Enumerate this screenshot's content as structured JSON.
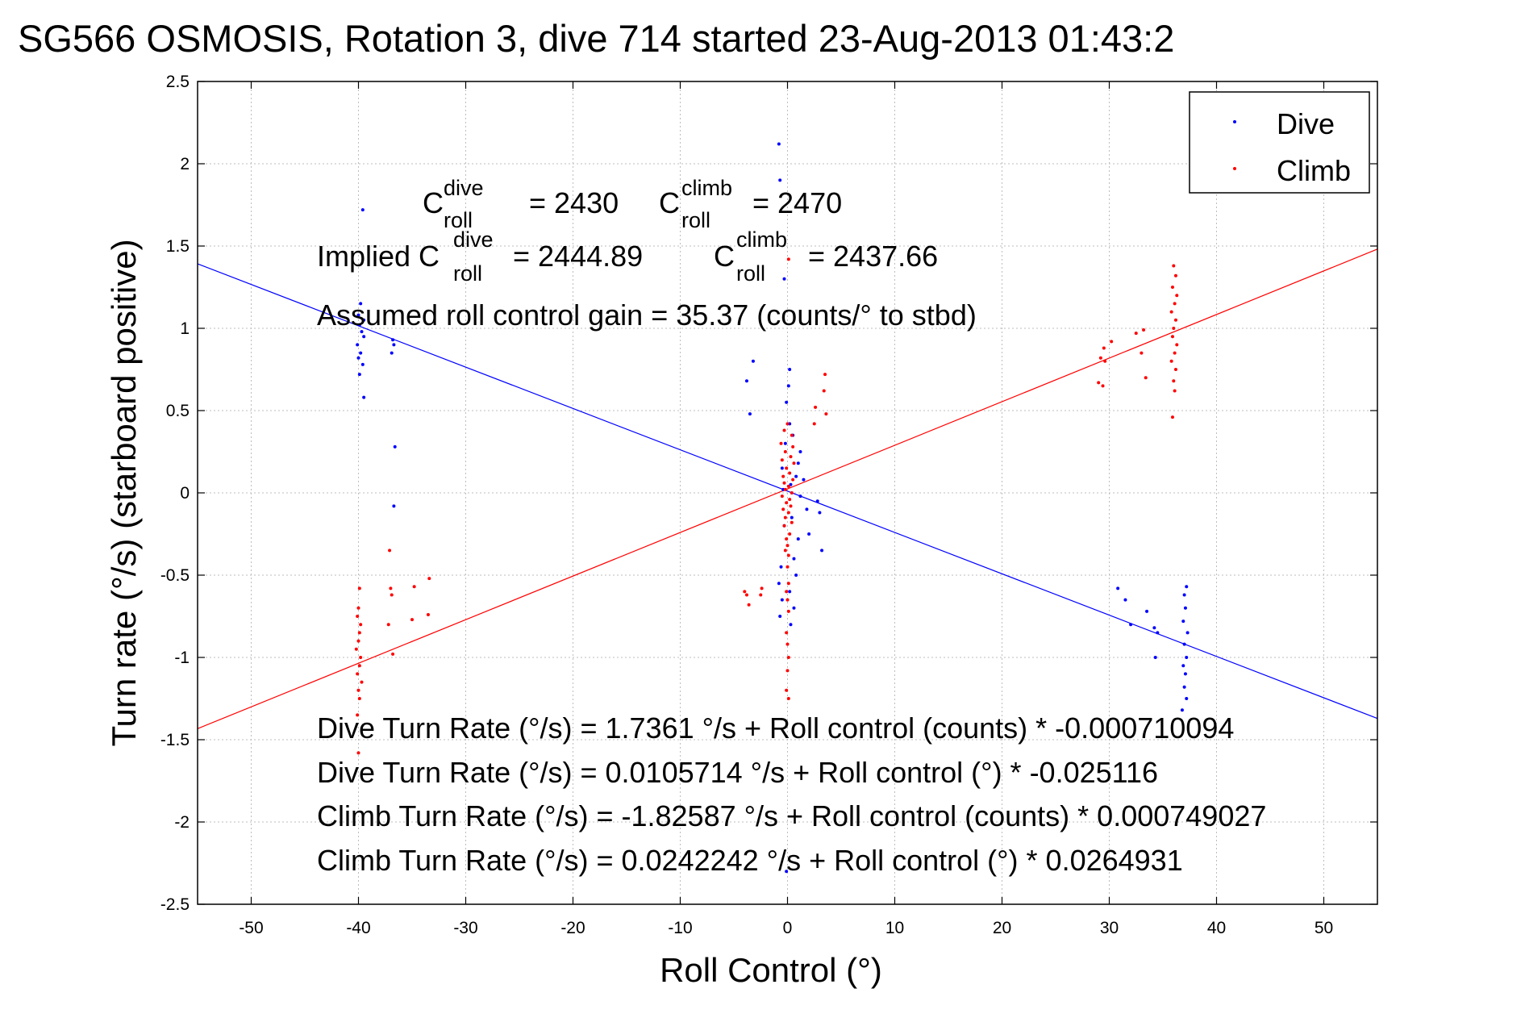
{
  "chart_data": {
    "type": "scatter",
    "title": "SG566 OSMOSIS, Rotation 3, dive 714 started 23-Aug-2013 01:43:2",
    "xlabel": "Roll Control (°)",
    "ylabel": "Turn rate (°/s)  (starboard positive)",
    "xlim": [
      -55,
      55
    ],
    "ylim": [
      -2.5,
      2.5
    ],
    "xticks": [
      -50,
      -40,
      -30,
      -20,
      -10,
      0,
      10,
      20,
      30,
      40,
      50
    ],
    "yticks": [
      -2.5,
      -2,
      -1.5,
      -1,
      -0.5,
      0,
      0.5,
      1,
      1.5,
      2,
      2.5
    ],
    "grid": true,
    "legend_position": "top-right",
    "series": [
      {
        "name": "Dive",
        "color": "#0000ff",
        "points": [
          [
            -39.6,
            1.72
          ],
          [
            -39.8,
            1.15
          ],
          [
            -40.0,
            1.08
          ],
          [
            -39.5,
            1.05
          ],
          [
            -39.9,
            1.02
          ],
          [
            -39.7,
            0.98
          ],
          [
            -39.5,
            0.95
          ],
          [
            -40.1,
            0.9
          ],
          [
            -39.8,
            0.85
          ],
          [
            -40.0,
            0.82
          ],
          [
            -39.6,
            0.78
          ],
          [
            -39.9,
            0.72
          ],
          [
            -39.5,
            0.58
          ],
          [
            -36.8,
            0.93
          ],
          [
            -36.7,
            0.9
          ],
          [
            -36.9,
            0.85
          ],
          [
            -36.6,
            0.28
          ],
          [
            -36.7,
            -0.08
          ],
          [
            -0.8,
            2.12
          ],
          [
            -0.7,
            1.9
          ],
          [
            -0.3,
            1.3
          ],
          [
            -3.2,
            0.8
          ],
          [
            -3.8,
            0.68
          ],
          [
            -3.5,
            0.48
          ],
          [
            0.2,
            0.75
          ],
          [
            0.1,
            0.65
          ],
          [
            -0.1,
            0.55
          ],
          [
            0.2,
            0.42
          ],
          [
            0.5,
            0.35
          ],
          [
            -0.2,
            0.3
          ],
          [
            1.2,
            0.25
          ],
          [
            1.0,
            0.18
          ],
          [
            -0.5,
            0.15
          ],
          [
            0.8,
            0.1
          ],
          [
            1.5,
            0.08
          ],
          [
            0.3,
            0.05
          ],
          [
            -0.4,
            0.02
          ],
          [
            1.2,
            -0.02
          ],
          [
            2.8,
            -0.05
          ],
          [
            1.8,
            -0.1
          ],
          [
            3.0,
            -0.12
          ],
          [
            0.4,
            -0.15
          ],
          [
            -0.3,
            -0.2
          ],
          [
            2.0,
            -0.25
          ],
          [
            1.0,
            -0.28
          ],
          [
            3.2,
            -0.35
          ],
          [
            0.6,
            -0.4
          ],
          [
            -0.6,
            -0.45
          ],
          [
            0.8,
            -0.5
          ],
          [
            -0.8,
            -0.55
          ],
          [
            0.2,
            -0.6
          ],
          [
            -0.5,
            -0.65
          ],
          [
            0.6,
            -0.7
          ],
          [
            -0.7,
            -0.75
          ],
          [
            0.3,
            -0.8
          ],
          [
            -0.1,
            -2.3
          ],
          [
            30.8,
            -0.58
          ],
          [
            31.5,
            -0.65
          ],
          [
            32.0,
            -0.8
          ],
          [
            33.5,
            -0.72
          ],
          [
            34.2,
            -0.82
          ],
          [
            34.5,
            -0.85
          ],
          [
            34.3,
            -1.0
          ],
          [
            37.2,
            -0.57
          ],
          [
            37.0,
            -0.62
          ],
          [
            37.1,
            -0.7
          ],
          [
            36.9,
            -0.78
          ],
          [
            37.3,
            -0.85
          ],
          [
            37.0,
            -0.92
          ],
          [
            37.2,
            -1.0
          ],
          [
            36.9,
            -1.05
          ],
          [
            37.1,
            -1.1
          ],
          [
            37.0,
            -1.18
          ],
          [
            37.2,
            -1.25
          ],
          [
            36.8,
            -1.32
          ]
        ]
      },
      {
        "name": "Climb",
        "color": "#ff0000",
        "points": [
          [
            -39.9,
            -0.58
          ],
          [
            -40.0,
            -0.7
          ],
          [
            -40.1,
            -0.75
          ],
          [
            -39.8,
            -0.8
          ],
          [
            -39.9,
            -0.85
          ],
          [
            -40.0,
            -0.9
          ],
          [
            -40.2,
            -0.95
          ],
          [
            -39.8,
            -1.0
          ],
          [
            -39.9,
            -1.05
          ],
          [
            -40.1,
            -1.1
          ],
          [
            -39.7,
            -1.15
          ],
          [
            -40.0,
            -1.2
          ],
          [
            -39.9,
            -1.25
          ],
          [
            -40.1,
            -1.35
          ],
          [
            -40.0,
            -1.58
          ],
          [
            -37.1,
            -0.35
          ],
          [
            -37.0,
            -0.58
          ],
          [
            -36.9,
            -0.62
          ],
          [
            -37.2,
            -0.8
          ],
          [
            -36.8,
            -0.98
          ],
          [
            -34.8,
            -0.57
          ],
          [
            -33.4,
            -0.52
          ],
          [
            -35.0,
            -0.77
          ],
          [
            -33.5,
            -0.74
          ],
          [
            -4.0,
            -0.6
          ],
          [
            -3.8,
            -0.62
          ],
          [
            -3.6,
            -0.68
          ],
          [
            -2.4,
            -0.58
          ],
          [
            -2.5,
            -0.62
          ],
          [
            3.5,
            0.72
          ],
          [
            3.4,
            0.62
          ],
          [
            3.6,
            0.48
          ],
          [
            2.6,
            0.52
          ],
          [
            2.5,
            0.42
          ],
          [
            0.1,
            1.42
          ],
          [
            0.0,
            0.42
          ],
          [
            -0.3,
            0.38
          ],
          [
            0.4,
            0.35
          ],
          [
            -0.6,
            0.3
          ],
          [
            0.5,
            0.28
          ],
          [
            -0.2,
            0.25
          ],
          [
            0.3,
            0.22
          ],
          [
            -0.5,
            0.2
          ],
          [
            0.6,
            0.18
          ],
          [
            -0.1,
            0.15
          ],
          [
            0.2,
            0.12
          ],
          [
            -0.4,
            0.1
          ],
          [
            0.5,
            0.08
          ],
          [
            -0.3,
            0.06
          ],
          [
            0.1,
            0.04
          ],
          [
            -0.2,
            0.02
          ],
          [
            0.4,
            0.0
          ],
          [
            -0.5,
            -0.02
          ],
          [
            0.2,
            -0.04
          ],
          [
            -0.1,
            -0.06
          ],
          [
            0.3,
            -0.08
          ],
          [
            -0.4,
            -0.1
          ],
          [
            0.1,
            -0.12
          ],
          [
            -0.2,
            -0.15
          ],
          [
            0.4,
            -0.18
          ],
          [
            -0.3,
            -0.2
          ],
          [
            0.2,
            -0.25
          ],
          [
            -0.1,
            -0.28
          ],
          [
            0.0,
            -0.32
          ],
          [
            -0.2,
            -0.35
          ],
          [
            0.1,
            -0.38
          ],
          [
            0.0,
            -0.45
          ],
          [
            0.1,
            -0.55
          ],
          [
            -0.1,
            -0.6
          ],
          [
            0.0,
            -0.65
          ],
          [
            0.1,
            -0.72
          ],
          [
            -0.1,
            -0.85
          ],
          [
            0.0,
            -0.92
          ],
          [
            0.1,
            -1.0
          ],
          [
            0.0,
            -1.08
          ],
          [
            -0.1,
            -1.2
          ],
          [
            0.1,
            -1.25
          ],
          [
            29.5,
            0.88
          ],
          [
            29.6,
            0.8
          ],
          [
            29.2,
            0.82
          ],
          [
            29.0,
            0.67
          ],
          [
            29.4,
            0.65
          ],
          [
            30.2,
            0.92
          ],
          [
            32.5,
            0.97
          ],
          [
            33.2,
            0.99
          ],
          [
            33.0,
            0.85
          ],
          [
            33.4,
            0.7
          ],
          [
            36.0,
            1.38
          ],
          [
            36.2,
            1.32
          ],
          [
            35.9,
            1.25
          ],
          [
            36.3,
            1.2
          ],
          [
            36.1,
            1.15
          ],
          [
            35.8,
            1.1
          ],
          [
            36.2,
            1.05
          ],
          [
            36.0,
            1.0
          ],
          [
            35.9,
            0.95
          ],
          [
            36.3,
            0.9
          ],
          [
            36.1,
            0.85
          ],
          [
            35.8,
            0.8
          ],
          [
            36.2,
            0.75
          ],
          [
            36.0,
            0.68
          ],
          [
            36.1,
            0.62
          ],
          [
            35.9,
            0.46
          ]
        ]
      }
    ],
    "fit_lines": [
      {
        "series": "Dive",
        "color": "#0000ff",
        "intercept": 0.0105714,
        "slope": -0.025116
      },
      {
        "series": "Climb",
        "color": "#ff0000",
        "intercept": 0.0242242,
        "slope": 0.0264931
      }
    ],
    "annotations": {
      "c_roll_dive": {
        "base": "C",
        "sup": "dive",
        "sub": "roll",
        "value": "= 2430"
      },
      "c_roll_climb": {
        "base": "C",
        "sup": "climb",
        "sub": "roll",
        "value": "= 2470"
      },
      "implied_dive": {
        "prefix": "Implied C",
        "sup": "dive",
        "sub": "roll",
        "value": "= 2444.89"
      },
      "implied_climb": {
        "base": "C",
        "sup": "climb",
        "sub": "roll",
        "value": "= 2437.66"
      },
      "gain": "Assumed roll control gain = 35.37 (counts/° to stbd)",
      "eq1": "Dive Turn Rate (°/s) = 1.7361 °/s + Roll control (counts) * -0.000710094",
      "eq2": "Dive Turn Rate (°/s) = 0.0105714 °/s + Roll control (°) * -0.025116",
      "eq3": "Climb Turn Rate (°/s) = -1.82587 °/s + Roll control (counts) * 0.000749027",
      "eq4": "Climb Turn Rate (°/s) = 0.0242242 °/s + Roll control (°) * 0.0264931"
    }
  }
}
